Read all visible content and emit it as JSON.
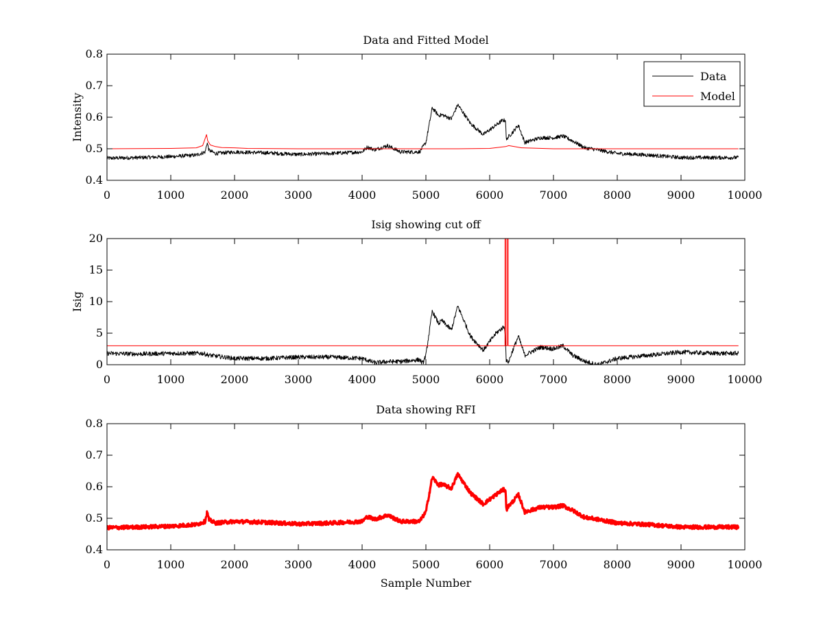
{
  "chart_data": [
    {
      "type": "line",
      "title": "Data and Fitted Model",
      "xlabel": "",
      "ylabel": "Intensity",
      "xlim": [
        0,
        10000
      ],
      "ylim": [
        0.4,
        0.8
      ],
      "xticks": [
        0,
        1000,
        2000,
        3000,
        4000,
        5000,
        6000,
        7000,
        8000,
        9000,
        10000
      ],
      "yticks": [
        0.4,
        0.5,
        0.6,
        0.7,
        0.8
      ],
      "ytick_labels": [
        "0.4",
        "0.5",
        "0.6",
        "0.7",
        "0.8"
      ],
      "legend_position": "top-right",
      "series": [
        {
          "name": "Data",
          "color": "#000000",
          "noise": 0.006,
          "x": [
            0,
            500,
            1000,
            1400,
            1540,
            1570,
            1600,
            1700,
            2000,
            2500,
            3000,
            3500,
            4000,
            4080,
            4200,
            4400,
            4600,
            4900,
            5000,
            5100,
            5200,
            5250,
            5400,
            5500,
            5700,
            5900,
            6100,
            6200,
            6250,
            6260,
            6280,
            6350,
            6450,
            6550,
            6800,
            7000,
            7150,
            7300,
            7500,
            7600,
            8000,
            8500,
            9000,
            9500,
            9900
          ],
          "y": [
            0.47,
            0.472,
            0.475,
            0.48,
            0.49,
            0.52,
            0.495,
            0.485,
            0.49,
            0.487,
            0.482,
            0.485,
            0.49,
            0.505,
            0.497,
            0.51,
            0.49,
            0.49,
            0.52,
            0.63,
            0.605,
            0.608,
            0.595,
            0.64,
            0.58,
            0.545,
            0.575,
            0.59,
            0.59,
            0.525,
            0.535,
            0.55,
            0.575,
            0.52,
            0.535,
            0.535,
            0.54,
            0.525,
            0.502,
            0.5,
            0.485,
            0.48,
            0.472,
            0.472,
            0.472
          ]
        },
        {
          "name": "Model",
          "color": "#ff0000",
          "noise": 0,
          "x": [
            0,
            1000,
            1400,
            1500,
            1560,
            1580,
            1620,
            1700,
            1800,
            2000,
            2200,
            3000,
            4000,
            5000,
            5500,
            6000,
            6250,
            6300,
            6500,
            7000,
            9900
          ],
          "y": [
            0.5,
            0.501,
            0.503,
            0.51,
            0.545,
            0.525,
            0.512,
            0.507,
            0.504,
            0.503,
            0.501,
            0.5,
            0.5,
            0.5,
            0.5,
            0.501,
            0.507,
            0.51,
            0.503,
            0.5,
            0.5
          ]
        }
      ]
    },
    {
      "type": "line",
      "title": "Isig showing cut off",
      "xlabel": "",
      "ylabel": "Isig",
      "xlim": [
        0,
        10000
      ],
      "ylim": [
        0,
        20
      ],
      "xticks": [
        0,
        1000,
        2000,
        3000,
        4000,
        5000,
        6000,
        7000,
        8000,
        9000,
        10000
      ],
      "yticks": [
        0,
        5,
        10,
        15,
        20
      ],
      "ytick_labels": [
        "0",
        "5",
        "10",
        "15",
        "20"
      ],
      "series": [
        {
          "color": "#000000",
          "noise": 0.35,
          "x": [
            0,
            500,
            1000,
            1500,
            1600,
            2000,
            2500,
            3000,
            3500,
            4000,
            4200,
            4400,
            4600,
            4900,
            4950,
            5000,
            5100,
            5200,
            5250,
            5400,
            5500,
            5700,
            5900,
            6100,
            6220,
            6240,
            6260,
            6300,
            6350,
            6450,
            6550,
            6800,
            7000,
            7150,
            7300,
            7500,
            7700,
            8000,
            8500,
            9000,
            9500,
            9900
          ],
          "y": [
            1.8,
            1.7,
            1.8,
            1.8,
            1.5,
            1.0,
            1.0,
            1.2,
            1.2,
            1.0,
            0.3,
            0.5,
            0.5,
            0.8,
            0.2,
            1.5,
            8.5,
            6.5,
            7.0,
            5.5,
            9.3,
            4.5,
            2.3,
            5.0,
            6.0,
            5.5,
            0.5,
            0.5,
            2.0,
            4.5,
            1.5,
            2.8,
            2.5,
            3.0,
            1.5,
            0.5,
            0.0,
            1.0,
            1.5,
            2.0,
            1.8,
            1.8
          ]
        },
        {
          "color": "#ff0000",
          "noise": 0,
          "x": [
            0,
            6240,
            6240,
            6255,
            6255,
            6275,
            6275,
            6290,
            6290,
            9900
          ],
          "y": [
            3,
            3,
            20,
            20,
            3,
            3,
            20,
            20,
            3,
            3
          ]
        }
      ]
    },
    {
      "type": "line",
      "title": "Data showing RFI",
      "xlabel": "Sample Number",
      "ylabel": "",
      "xlim": [
        0,
        10000
      ],
      "ylim": [
        0.4,
        0.8
      ],
      "xticks": [
        0,
        1000,
        2000,
        3000,
        4000,
        5000,
        6000,
        7000,
        8000,
        9000,
        10000
      ],
      "yticks": [
        0.4,
        0.5,
        0.6,
        0.7,
        0.8
      ],
      "ytick_labels": [
        "0.4",
        "0.5",
        "0.6",
        "0.7",
        "0.8"
      ],
      "series": [
        {
          "color": "#ff0000",
          "noise": 0.006,
          "thick": true,
          "x": [
            0,
            500,
            1000,
            1400,
            1540,
            1570,
            1600,
            1700,
            2000,
            2500,
            3000,
            3500,
            4000,
            4080,
            4200,
            4400,
            4600,
            4900,
            5000,
            5100,
            5200,
            5250,
            5400,
            5500,
            5700,
            5900,
            6100,
            6200,
            6250,
            6260,
            6280,
            6350,
            6450,
            6550,
            6800,
            7000,
            7150,
            7300,
            7500,
            7600,
            8000,
            8500,
            9000,
            9500,
            9900
          ],
          "y": [
            0.47,
            0.472,
            0.475,
            0.48,
            0.49,
            0.52,
            0.495,
            0.485,
            0.49,
            0.487,
            0.482,
            0.485,
            0.49,
            0.505,
            0.497,
            0.51,
            0.49,
            0.49,
            0.52,
            0.63,
            0.605,
            0.608,
            0.595,
            0.64,
            0.58,
            0.545,
            0.575,
            0.59,
            0.59,
            0.525,
            0.535,
            0.55,
            0.575,
            0.52,
            0.535,
            0.535,
            0.54,
            0.525,
            0.502,
            0.5,
            0.485,
            0.48,
            0.472,
            0.472,
            0.472
          ]
        }
      ]
    }
  ]
}
